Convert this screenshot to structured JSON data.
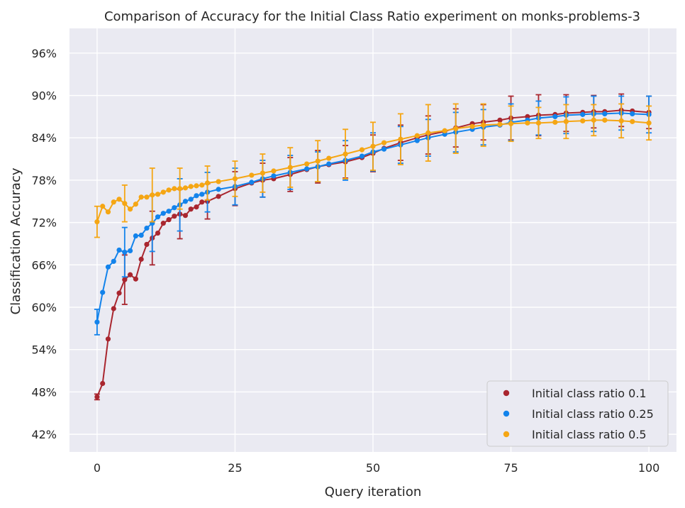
{
  "chart_data": {
    "type": "line",
    "title": "Comparison of Accuracy for the Initial Class Ratio experiment on monks-problems-3",
    "xlabel": "Query iteration",
    "ylabel": "Classification Accuracy",
    "xlim": [
      -5,
      105
    ],
    "ylim": [
      39.5,
      99.5
    ],
    "xticks": [
      0,
      25,
      50,
      75,
      100
    ],
    "yticks": [
      42,
      48,
      54,
      60,
      66,
      72,
      78,
      84,
      90,
      96
    ],
    "ytick_suffix": "%",
    "grid": true,
    "legend_position": "lower right",
    "background": "#eaeaf2",
    "series": [
      {
        "name": "Initial class ratio 0.1",
        "color": "#a9262f",
        "points": [
          [
            0,
            47.3
          ],
          [
            1,
            49.2
          ],
          [
            2,
            55.5
          ],
          [
            3,
            59.8
          ],
          [
            4,
            62.0
          ],
          [
            5,
            63.9
          ],
          [
            6,
            64.6
          ],
          [
            7,
            64.0
          ],
          [
            8,
            66.8
          ],
          [
            9,
            68.9
          ],
          [
            10,
            69.8
          ],
          [
            11,
            70.5
          ],
          [
            12,
            71.9
          ],
          [
            13,
            72.4
          ],
          [
            14,
            72.9
          ],
          [
            15,
            73.2
          ],
          [
            16,
            73.0
          ],
          [
            17,
            73.9
          ],
          [
            18,
            74.2
          ],
          [
            19,
            74.9
          ],
          [
            20,
            75.0
          ],
          [
            22,
            75.7
          ],
          [
            25,
            76.8
          ],
          [
            28,
            77.6
          ],
          [
            30,
            78.0
          ],
          [
            32,
            78.2
          ],
          [
            35,
            78.8
          ],
          [
            38,
            79.5
          ],
          [
            40,
            79.9
          ],
          [
            42,
            80.2
          ],
          [
            45,
            80.6
          ],
          [
            48,
            81.2
          ],
          [
            50,
            81.8
          ],
          [
            52,
            82.5
          ],
          [
            55,
            83.3
          ],
          [
            58,
            84.0
          ],
          [
            60,
            84.4
          ],
          [
            63,
            84.9
          ],
          [
            65,
            85.4
          ],
          [
            68,
            86.0
          ],
          [
            70,
            86.2
          ],
          [
            73,
            86.5
          ],
          [
            75,
            86.8
          ],
          [
            78,
            87.0
          ],
          [
            80,
            87.2
          ],
          [
            83,
            87.3
          ],
          [
            85,
            87.5
          ],
          [
            88,
            87.6
          ],
          [
            90,
            87.7
          ],
          [
            92,
            87.7
          ],
          [
            95,
            87.9
          ],
          [
            97,
            87.8
          ],
          [
            100,
            87.6
          ]
        ],
        "error_bars": [
          [
            0,
            47.3,
            0.4
          ],
          [
            5,
            63.9,
            3.5
          ],
          [
            10,
            69.8,
            3.8
          ],
          [
            15,
            73.2,
            3.5
          ],
          [
            20,
            75.0,
            2.5
          ],
          [
            25,
            76.8,
            2.4
          ],
          [
            30,
            78.0,
            2.4
          ],
          [
            35,
            78.8,
            2.4
          ],
          [
            40,
            79.9,
            2.3
          ],
          [
            45,
            80.6,
            2.3
          ],
          [
            50,
            81.8,
            2.6
          ],
          [
            55,
            83.3,
            2.5
          ],
          [
            60,
            84.4,
            2.7
          ],
          [
            65,
            85.4,
            2.7
          ],
          [
            70,
            86.2,
            2.5
          ],
          [
            75,
            86.8,
            3.1
          ],
          [
            80,
            87.2,
            2.9
          ],
          [
            85,
            87.5,
            2.6
          ],
          [
            90,
            87.7,
            2.3
          ],
          [
            95,
            87.9,
            2.3
          ],
          [
            100,
            87.6,
            2.3
          ]
        ]
      },
      {
        "name": "Initial class ratio 0.25",
        "color": "#1383eb",
        "points": [
          [
            0,
            57.9
          ],
          [
            1,
            62.1
          ],
          [
            2,
            65.7
          ],
          [
            3,
            66.5
          ],
          [
            4,
            68.1
          ],
          [
            5,
            67.8
          ],
          [
            6,
            68.0
          ],
          [
            7,
            70.1
          ],
          [
            8,
            70.2
          ],
          [
            9,
            71.2
          ],
          [
            10,
            71.9
          ],
          [
            11,
            72.8
          ],
          [
            12,
            73.3
          ],
          [
            13,
            73.6
          ],
          [
            14,
            74.1
          ],
          [
            15,
            74.5
          ],
          [
            16,
            75.0
          ],
          [
            17,
            75.3
          ],
          [
            18,
            75.8
          ],
          [
            19,
            76.0
          ],
          [
            20,
            76.3
          ],
          [
            22,
            76.7
          ],
          [
            25,
            77.1
          ],
          [
            28,
            77.7
          ],
          [
            30,
            78.2
          ],
          [
            32,
            78.6
          ],
          [
            35,
            79.1
          ],
          [
            38,
            79.6
          ],
          [
            40,
            79.9
          ],
          [
            42,
            80.3
          ],
          [
            45,
            80.8
          ],
          [
            48,
            81.4
          ],
          [
            50,
            82.0
          ],
          [
            52,
            82.4
          ],
          [
            55,
            83.0
          ],
          [
            58,
            83.6
          ],
          [
            60,
            84.0
          ],
          [
            63,
            84.5
          ],
          [
            65,
            84.8
          ],
          [
            68,
            85.2
          ],
          [
            70,
            85.5
          ],
          [
            73,
            85.8
          ],
          [
            75,
            86.2
          ],
          [
            78,
            86.5
          ],
          [
            80,
            86.8
          ],
          [
            83,
            87.0
          ],
          [
            85,
            87.2
          ],
          [
            88,
            87.3
          ],
          [
            90,
            87.4
          ],
          [
            92,
            87.4
          ],
          [
            95,
            87.5
          ],
          [
            97,
            87.4
          ],
          [
            100,
            87.3
          ]
        ],
        "error_bars": [
          [
            0,
            57.9,
            1.8
          ],
          [
            5,
            67.8,
            3.5
          ],
          [
            10,
            71.9,
            4.0
          ],
          [
            15,
            74.5,
            3.7
          ],
          [
            20,
            76.3,
            2.8
          ],
          [
            25,
            77.1,
            2.6
          ],
          [
            30,
            78.2,
            2.6
          ],
          [
            35,
            79.1,
            2.4
          ],
          [
            40,
            79.9,
            2.1
          ],
          [
            45,
            80.8,
            2.8
          ],
          [
            50,
            82.0,
            2.7
          ],
          [
            55,
            83.0,
            2.6
          ],
          [
            60,
            84.0,
            2.6
          ],
          [
            65,
            84.8,
            2.8
          ],
          [
            70,
            85.5,
            2.5
          ],
          [
            75,
            86.2,
            2.6
          ],
          [
            80,
            86.8,
            2.4
          ],
          [
            85,
            87.2,
            2.6
          ],
          [
            90,
            87.4,
            2.5
          ],
          [
            95,
            87.5,
            2.4
          ],
          [
            100,
            87.3,
            2.6
          ]
        ]
      },
      {
        "name": "Initial class ratio 0.5",
        "color": "#f5a614",
        "points": [
          [
            0,
            72.1
          ],
          [
            1,
            74.3
          ],
          [
            2,
            73.5
          ],
          [
            3,
            74.9
          ],
          [
            4,
            75.3
          ],
          [
            5,
            74.7
          ],
          [
            6,
            73.9
          ],
          [
            7,
            74.6
          ],
          [
            8,
            75.6
          ],
          [
            9,
            75.6
          ],
          [
            10,
            75.9
          ],
          [
            11,
            76.0
          ],
          [
            12,
            76.3
          ],
          [
            13,
            76.6
          ],
          [
            14,
            76.8
          ],
          [
            15,
            76.8
          ],
          [
            16,
            76.9
          ],
          [
            17,
            77.1
          ],
          [
            18,
            77.2
          ],
          [
            19,
            77.3
          ],
          [
            20,
            77.6
          ],
          [
            22,
            77.8
          ],
          [
            25,
            78.2
          ],
          [
            28,
            78.7
          ],
          [
            30,
            79.0
          ],
          [
            32,
            79.3
          ],
          [
            35,
            79.8
          ],
          [
            38,
            80.3
          ],
          [
            40,
            80.7
          ],
          [
            42,
            81.1
          ],
          [
            45,
            81.7
          ],
          [
            48,
            82.3
          ],
          [
            50,
            82.8
          ],
          [
            52,
            83.3
          ],
          [
            55,
            83.8
          ],
          [
            58,
            84.3
          ],
          [
            60,
            84.7
          ],
          [
            63,
            85.0
          ],
          [
            65,
            85.3
          ],
          [
            68,
            85.6
          ],
          [
            70,
            85.8
          ],
          [
            73,
            85.9
          ],
          [
            75,
            86.0
          ],
          [
            78,
            86.1
          ],
          [
            80,
            86.1
          ],
          [
            83,
            86.2
          ],
          [
            85,
            86.3
          ],
          [
            88,
            86.4
          ],
          [
            90,
            86.5
          ],
          [
            92,
            86.5
          ],
          [
            95,
            86.4
          ],
          [
            97,
            86.3
          ],
          [
            100,
            86.1
          ]
        ],
        "error_bars": [
          [
            0,
            72.1,
            2.2
          ],
          [
            5,
            74.7,
            2.6
          ],
          [
            10,
            75.9,
            3.8
          ],
          [
            15,
            76.8,
            2.9
          ],
          [
            20,
            77.6,
            2.4
          ],
          [
            25,
            78.2,
            2.5
          ],
          [
            30,
            79.0,
            2.7
          ],
          [
            35,
            79.8,
            2.8
          ],
          [
            40,
            80.7,
            2.9
          ],
          [
            45,
            81.7,
            3.5
          ],
          [
            50,
            82.8,
            3.4
          ],
          [
            55,
            83.8,
            3.6
          ],
          [
            60,
            84.7,
            4.0
          ],
          [
            65,
            85.3,
            3.5
          ],
          [
            70,
            85.8,
            3.0
          ],
          [
            75,
            86.0,
            2.5
          ],
          [
            80,
            86.1,
            2.2
          ],
          [
            85,
            86.3,
            2.4
          ],
          [
            90,
            86.5,
            2.2
          ],
          [
            95,
            86.4,
            2.4
          ],
          [
            100,
            86.1,
            2.4
          ]
        ]
      }
    ]
  }
}
